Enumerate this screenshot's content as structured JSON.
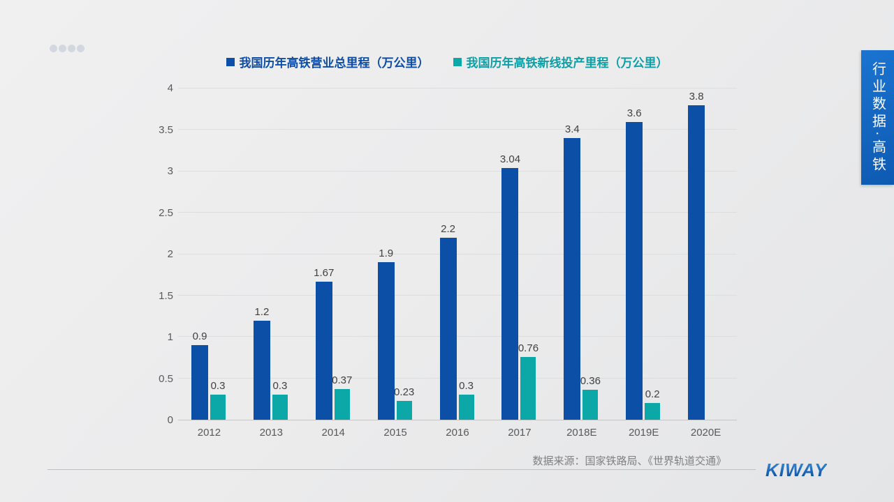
{
  "slide": {
    "side_tab": {
      "label": "行业数据·高铁",
      "color": "#1268c4"
    },
    "footer": {
      "source": "数据来源：国家铁路局、《世界轨道交通》",
      "logo_text": "KIWAY",
      "logo_color": "#1262b8"
    },
    "decor": {
      "dots_count": 4,
      "dots_color": "#d3d8e0"
    }
  },
  "chart_data": {
    "type": "bar",
    "categories": [
      "2012",
      "2013",
      "2014",
      "2015",
      "2016",
      "2017",
      "2018E",
      "2019E",
      "2020E"
    ],
    "series": [
      {
        "name": "我国历年高铁营业总里程（万公里）",
        "color": "#0b4fa7",
        "values": [
          0.9,
          1.2,
          1.67,
          1.9,
          2.2,
          3.04,
          3.4,
          3.6,
          3.8
        ],
        "labels": [
          "0.9",
          "1.2",
          "1.67",
          "1.9",
          "2.2",
          "3.04",
          "3.4",
          "3.6",
          "3.8"
        ]
      },
      {
        "name": "我国历年高铁新线投产里程（万公里）",
        "color": "#0ca8a8",
        "values": [
          0.3,
          0.3,
          0.37,
          0.23,
          0.3,
          0.76,
          0.36,
          0.2,
          null
        ],
        "labels": [
          "0.3",
          "0.3",
          "0.37",
          "0.23",
          "0.3",
          "0.76",
          "0.36",
          "0.2",
          null
        ]
      }
    ],
    "ylim": [
      0,
      4
    ],
    "ytick_step": 0.5,
    "ytick_labels": [
      "0",
      "0.5",
      "1",
      "1.5",
      "2",
      "2.5",
      "3",
      "3.5",
      "4"
    ],
    "grid": true,
    "legend_position": "top",
    "axis_label_color": "#595959",
    "value_label_color": "#414141",
    "grid_color": "#dcdddd"
  }
}
